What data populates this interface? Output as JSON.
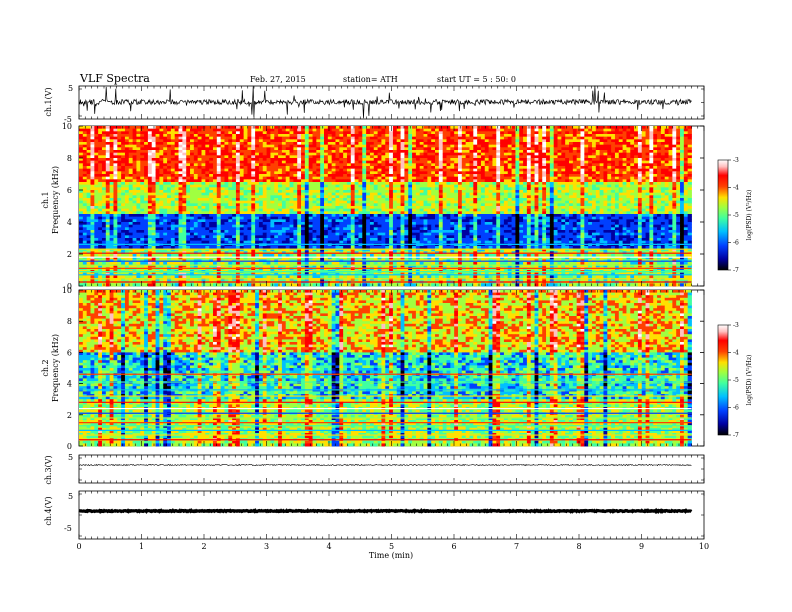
{
  "header": {
    "title": "VLF Spectra",
    "date": "Feb. 27, 2015",
    "station": "station= ATH",
    "start": "start  UT =  5 : 50: 0"
  },
  "chart_data": [
    {
      "type": "line",
      "ylabel": "ch.1(V)",
      "ylim": [
        -5,
        5
      ],
      "yticks": [
        "5",
        "-5"
      ],
      "x_range": [
        0,
        9.8
      ],
      "description_level": "noisy trace around 0 V with frequent negative spikes"
    },
    {
      "type": "heatmap",
      "ylabel": "ch.1\nFrequency (kHz)",
      "ylim": [
        0,
        10
      ],
      "yticks": [
        "0",
        "2",
        "4",
        "6",
        "8",
        "10"
      ],
      "x_range": [
        0,
        9.8
      ],
      "colorbar": {
        "label": "log(PSD) (V²/Hz)",
        "range": [
          -7,
          -3
        ],
        "ticks": [
          "-3",
          "-4",
          "-5",
          "-6",
          "-7"
        ]
      }
    },
    {
      "type": "heatmap",
      "ylabel": "ch.2\nFrequency (kHz)",
      "ylim": [
        0,
        10
      ],
      "yticks": [
        "0",
        "2",
        "4",
        "6",
        "8",
        "10"
      ],
      "x_range": [
        0,
        9.8
      ],
      "colorbar": {
        "label": "log(PSD) (V²/Hz)",
        "range": [
          -7,
          -3
        ],
        "ticks": [
          "-3",
          "-4",
          "-5",
          "-6",
          "-7"
        ]
      }
    },
    {
      "type": "line",
      "ylabel": "ch.3(V)",
      "ylim": [
        -5,
        5
      ],
      "yticks": [
        "5"
      ],
      "x_range": [
        0,
        9.8
      ],
      "description_level": "flat trace near 0 V"
    },
    {
      "type": "line",
      "ylabel": "ch.4(V)",
      "ylim": [
        -5,
        5
      ],
      "yticks": [
        "5",
        "-5"
      ],
      "x_range": [
        0,
        9.8
      ],
      "description_level": "thick flat trace near 0 V"
    }
  ],
  "x_axis": {
    "label": "Time  (min)",
    "ticks": [
      "0",
      "1",
      "2",
      "3",
      "4",
      "5",
      "6",
      "7",
      "8",
      "9",
      "10"
    ],
    "xlim": [
      0,
      10
    ]
  },
  "colors": {
    "colormap": [
      "#000000",
      "#0000a0",
      "#0040ff",
      "#00c0ff",
      "#40ffa0",
      "#a0ff40",
      "#ffe000",
      "#ff4000",
      "#ff0000",
      "#ffc0c0",
      "#ffffff"
    ]
  }
}
